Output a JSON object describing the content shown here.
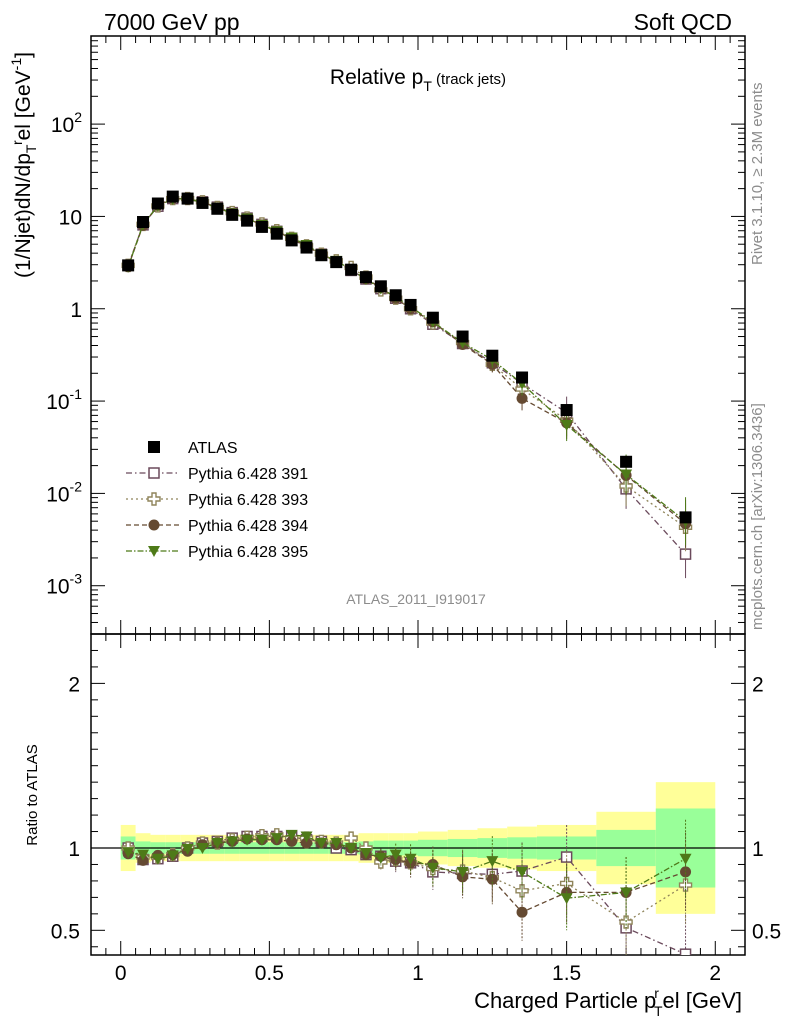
{
  "header": {
    "left": "7000 GeV pp",
    "right": "Soft QCD"
  },
  "side_labels": {
    "rivet": "Rivet 3.1.10, ≥ 2.3M events",
    "mcplots": "mcplots.cern.ch [arXiv:1306.3436]"
  },
  "chart_data": {
    "type": "scatter",
    "title": {
      "main": "Relative p",
      "sub": "T",
      "suffix": " (track jets)"
    },
    "watermark": "ATLAS_2011_I919017",
    "xlabel": {
      "main": "Charged Particle p",
      "sup": "r",
      "sub": "T",
      "suffix": "el [GeV]"
    },
    "ylabel": {
      "main": "(1/Njet)dN/dp",
      "sup": "r",
      "sub": "T",
      "suffix": "el [GeV",
      "unit_sup": "-1",
      "close": "]"
    },
    "ratio_ylabel": "Ratio to ATLAS",
    "xlim": [
      -0.1,
      2.1
    ],
    "ylim": [
      0.0003,
      900
    ],
    "yscale": "log",
    "ratio_ylim": [
      0.35,
      2.3
    ],
    "x_ticks": [
      "0",
      "0.5",
      "1",
      "1.5",
      "2"
    ],
    "y_ticks": [
      {
        "value": 0.001,
        "base": "10",
        "exp": "-3"
      },
      {
        "value": 0.01,
        "base": "10",
        "exp": "-2"
      },
      {
        "value": 0.1,
        "base": "10",
        "exp": "-1"
      },
      {
        "value": 1,
        "base": "1",
        "exp": ""
      },
      {
        "value": 10,
        "base": "10",
        "exp": ""
      },
      {
        "value": 100,
        "base": "10",
        "exp": "2"
      }
    ],
    "ratio_ticks": [
      "0.5",
      "1",
      "2"
    ],
    "legend_position": "lower-left",
    "x": [
      0.025,
      0.075,
      0.125,
      0.175,
      0.225,
      0.275,
      0.325,
      0.375,
      0.425,
      0.475,
      0.525,
      0.575,
      0.625,
      0.675,
      0.725,
      0.775,
      0.825,
      0.875,
      0.925,
      0.975,
      1.05,
      1.15,
      1.25,
      1.35,
      1.5,
      1.7,
      1.9
    ],
    "bin_edges": [
      0,
      0.05,
      0.1,
      0.15,
      0.2,
      0.25,
      0.3,
      0.35,
      0.4,
      0.45,
      0.5,
      0.55,
      0.6,
      0.65,
      0.7,
      0.75,
      0.8,
      0.85,
      0.9,
      0.95,
      1.0,
      1.1,
      1.2,
      1.3,
      1.4,
      1.6,
      1.8,
      2.0
    ],
    "band_inner": [
      0.07,
      0.04,
      0.035,
      0.035,
      0.035,
      0.035,
      0.035,
      0.035,
      0.035,
      0.035,
      0.035,
      0.035,
      0.035,
      0.035,
      0.035,
      0.035,
      0.04,
      0.045,
      0.045,
      0.045,
      0.05,
      0.055,
      0.06,
      0.065,
      0.07,
      0.11,
      0.24,
      0.58
    ],
    "band_outer": [
      0.14,
      0.09,
      0.08,
      0.08,
      0.08,
      0.08,
      0.08,
      0.08,
      0.08,
      0.08,
      0.08,
      0.08,
      0.08,
      0.08,
      0.08,
      0.08,
      0.09,
      0.09,
      0.09,
      0.09,
      0.1,
      0.11,
      0.12,
      0.13,
      0.14,
      0.22,
      0.4,
      0.95
    ],
    "series": [
      {
        "name": "ATLAS",
        "marker": "square-filled",
        "color": "#000000",
        "y": [
          2.95,
          8.7,
          13.8,
          16.4,
          15.6,
          14.0,
          12.1,
          10.4,
          9.0,
          7.7,
          6.5,
          5.5,
          4.6,
          3.8,
          3.2,
          2.65,
          2.2,
          1.75,
          1.4,
          1.1,
          0.8,
          0.5,
          0.31,
          0.18,
          0.08,
          0.022,
          0.0055
        ],
        "ratio": [
          1,
          1,
          1,
          1,
          1,
          1,
          1,
          1,
          1,
          1,
          1,
          1,
          1,
          1,
          1,
          1,
          1,
          1,
          1,
          1,
          1,
          1,
          1,
          1,
          1,
          1,
          1
        ]
      },
      {
        "name": "Pythia 6.428 391",
        "marker": "square-open",
        "color": "#6b4a5c",
        "dash": "6,3,1.5,3",
        "y": [
          2.95,
          8.1,
          12.9,
          15.6,
          15.6,
          14.4,
          12.6,
          11.0,
          9.6,
          8.2,
          6.9,
          5.8,
          4.8,
          3.9,
          3.2,
          2.6,
          2.1,
          1.65,
          1.3,
          1.0,
          0.68,
          0.42,
          0.26,
          0.155,
          0.075,
          0.0112,
          0.0022
        ],
        "ratio": [
          1.0,
          0.93,
          0.935,
          0.95,
          1.0,
          1.03,
          1.04,
          1.06,
          1.07,
          1.07,
          1.07,
          1.07,
          1.05,
          1.04,
          1.0,
          0.99,
          0.96,
          0.95,
          0.92,
          0.91,
          0.855,
          0.845,
          0.84,
          0.86,
          0.945,
          0.515,
          0.355
        ]
      },
      {
        "name": "Pythia 6.428 393",
        "marker": "cross-open",
        "color": "#8f845a",
        "dash": "2,3",
        "y": [
          2.95,
          8.2,
          13.0,
          15.6,
          15.6,
          14.4,
          12.5,
          11.0,
          9.6,
          8.3,
          7.0,
          5.8,
          4.8,
          3.9,
          3.3,
          2.8,
          2.2,
          1.6,
          1.3,
          1.0,
          0.7,
          0.43,
          0.25,
          0.135,
          0.062,
          0.012,
          0.0043
        ],
        "ratio": [
          1.0,
          0.945,
          0.945,
          0.96,
          1.0,
          1.03,
          1.03,
          1.05,
          1.065,
          1.075,
          1.08,
          1.06,
          1.06,
          1.04,
          1.03,
          1.06,
          1.0,
          0.915,
          0.93,
          0.91,
          0.875,
          0.86,
          0.82,
          0.74,
          0.785,
          0.55,
          0.775
        ]
      },
      {
        "name": "Pythia 6.428 394",
        "marker": "circle-filled",
        "color": "#654a32",
        "dash": "5,3",
        "y": [
          2.85,
          8.0,
          13.2,
          15.7,
          15.3,
          14.3,
          12.4,
          10.8,
          9.5,
          8.1,
          6.9,
          5.7,
          4.7,
          3.9,
          3.25,
          2.65,
          2.1,
          1.7,
          1.3,
          1.0,
          0.72,
          0.41,
          0.25,
          0.107,
          0.058,
          0.0157,
          0.0047
        ],
        "ratio": [
          0.965,
          0.925,
          0.955,
          0.96,
          0.98,
          1.02,
          1.03,
          1.04,
          1.055,
          1.05,
          1.05,
          1.04,
          1.03,
          1.03,
          1.02,
          1.0,
          0.96,
          0.95,
          0.93,
          0.91,
          0.9,
          0.825,
          0.81,
          0.61,
          0.73,
          0.73,
          0.855
        ]
      },
      {
        "name": "Pythia 6.428 395",
        "marker": "triangle-down-filled",
        "color": "#4e7a18",
        "dash": "6,2,1.5,2",
        "y": [
          2.85,
          8.2,
          13.0,
          15.4,
          15.6,
          14.1,
          12.4,
          10.8,
          9.5,
          8.1,
          6.9,
          5.9,
          4.9,
          3.9,
          3.3,
          2.65,
          2.1,
          1.65,
          1.35,
          1.05,
          0.72,
          0.43,
          0.28,
          0.155,
          0.055,
          0.016,
          0.005
        ],
        "ratio": [
          0.975,
          0.96,
          0.935,
          0.955,
          0.995,
          1.0,
          1.03,
          1.04,
          1.05,
          1.05,
          1.06,
          1.08,
          1.07,
          1.03,
          1.03,
          1.0,
          0.97,
          0.94,
          0.96,
          0.935,
          0.88,
          0.855,
          0.92,
          0.855,
          0.695,
          0.73,
          0.935
        ]
      }
    ]
  }
}
